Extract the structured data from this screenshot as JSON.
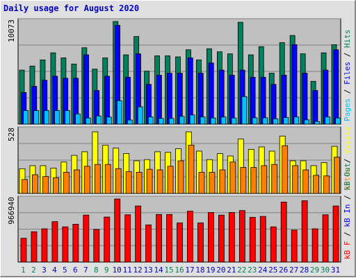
{
  "title": "Daily usage for August 2020",
  "colors": {
    "hits": "#00805c",
    "files": "#0000ff",
    "pages": "#00c0ff",
    "visits": "#ffff00",
    "sites": "#ff8000",
    "kb": "#ff0000",
    "weekend_label": "#00805c",
    "weekday_label": "#0000c0",
    "panel_bg": "#c0c0c0"
  },
  "chart_data": [
    {
      "type": "bar",
      "panel": "top",
      "max_label": "10073",
      "ylim": [
        0,
        10073
      ],
      "legend": [
        {
          "text": "Pages",
          "color": "#00c0ff"
        },
        {
          "text": " / ",
          "color": "#000000"
        },
        {
          "text": "Files",
          "color": "#0000ff"
        },
        {
          "text": " / ",
          "color": "#000000"
        },
        {
          "text": "Hits",
          "color": "#00805c"
        }
      ],
      "categories": [
        "1",
        "2",
        "3",
        "4",
        "5",
        "6",
        "7",
        "8",
        "9",
        "10",
        "11",
        "12",
        "13",
        "14",
        "15",
        "16",
        "17",
        "18",
        "19",
        "20",
        "21",
        "22",
        "23",
        "24",
        "25",
        "26",
        "27",
        "28",
        "29",
        "30",
        "31"
      ],
      "weekend_days": [
        1,
        2,
        8,
        9,
        15,
        16,
        22,
        23,
        29,
        30
      ],
      "series": [
        {
          "name": "Hits",
          "values": [
            5300,
            5700,
            6300,
            7000,
            6500,
            5900,
            7500,
            5400,
            6500,
            10073,
            6800,
            8600,
            5200,
            6700,
            6700,
            6600,
            7300,
            6300,
            7400,
            7100,
            6900,
            10000,
            6800,
            7600,
            5000,
            8000,
            8700,
            6900,
            4200,
            7000,
            7800
          ]
        },
        {
          "name": "Files",
          "values": [
            3100,
            3700,
            4300,
            4700,
            4500,
            4500,
            6800,
            3300,
            4700,
            9700,
            4600,
            6900,
            3900,
            4800,
            5000,
            5000,
            6500,
            5000,
            6000,
            5300,
            4800,
            5300,
            4600,
            4600,
            3900,
            4800,
            7800,
            5000,
            3300,
            5300,
            7300
          ]
        },
        {
          "name": "Pages",
          "values": [
            1330,
            1330,
            1330,
            1330,
            1330,
            1000,
            600,
            800,
            690,
            2300,
            400,
            1700,
            700,
            560,
            560,
            760,
            900,
            700,
            600,
            700,
            600,
            2700,
            620,
            620,
            520,
            650,
            700,
            420,
            260,
            700,
            600
          ]
        }
      ]
    },
    {
      "type": "bar",
      "panel": "middle",
      "max_label": "528",
      "ylim": [
        0,
        528
      ],
      "legend": [
        {
          "text": "Sites",
          "color": "#ff8000"
        },
        {
          "text": " / ",
          "color": "#000000"
        },
        {
          "text": "Visits",
          "color": "#ffff00"
        }
      ],
      "categories": [
        "1",
        "2",
        "3",
        "4",
        "5",
        "6",
        "7",
        "8",
        "9",
        "10",
        "11",
        "12",
        "13",
        "14",
        "15",
        "16",
        "17",
        "18",
        "19",
        "20",
        "21",
        "22",
        "23",
        "24",
        "25",
        "26",
        "27",
        "28",
        "29",
        "30",
        "31"
      ],
      "weekend_days": [
        1,
        2,
        8,
        9,
        15,
        16,
        22,
        23,
        29,
        30
      ],
      "series": [
        {
          "name": "Visits",
          "values": [
            205,
            230,
            230,
            210,
            260,
            315,
            345,
            510,
            400,
            375,
            330,
            270,
            280,
            345,
            340,
            370,
            510,
            350,
            280,
            330,
            310,
            450,
            365,
            385,
            350,
            475,
            270,
            270,
            230,
            255,
            390
          ]
        },
        {
          "name": "Sites",
          "values": [
            115,
            155,
            140,
            130,
            175,
            195,
            225,
            240,
            240,
            205,
            180,
            175,
            200,
            195,
            225,
            270,
            400,
            175,
            175,
            195,
            260,
            215,
            215,
            230,
            240,
            395,
            230,
            195,
            150,
            145,
            300
          ]
        }
      ]
    },
    {
      "type": "bar",
      "panel": "bottom",
      "max_label": "966940",
      "ylim": [
        0,
        966940
      ],
      "legend": [
        {
          "text": "kB F",
          "color": "#ff0000"
        },
        {
          "text": " / ",
          "color": "#000000"
        },
        {
          "text": "kB In",
          "color": "#0000ff"
        },
        {
          "text": " / ",
          "color": "#000000"
        },
        {
          "text": "kB Out",
          "color": "#00805c"
        }
      ],
      "categories": [
        "1",
        "2",
        "3",
        "4",
        "5",
        "6",
        "7",
        "8",
        "9",
        "10",
        "11",
        "12",
        "13",
        "14",
        "15",
        "16",
        "17",
        "18",
        "19",
        "20",
        "21",
        "22",
        "23",
        "24",
        "25",
        "26",
        "27",
        "28",
        "29",
        "30",
        "31"
      ],
      "weekend_days": [
        1,
        2,
        8,
        9,
        15,
        16,
        22,
        23,
        29,
        30
      ],
      "series": [
        {
          "name": "kB F",
          "values": [
            365000,
            465000,
            510000,
            620000,
            540000,
            580000,
            720000,
            500000,
            690000,
            966940,
            725000,
            860000,
            570000,
            730000,
            730000,
            600000,
            780000,
            600000,
            760000,
            720000,
            760000,
            790000,
            685000,
            700000,
            540000,
            920000,
            490000,
            940000,
            510000,
            725000,
            860000
          ]
        }
      ]
    }
  ]
}
